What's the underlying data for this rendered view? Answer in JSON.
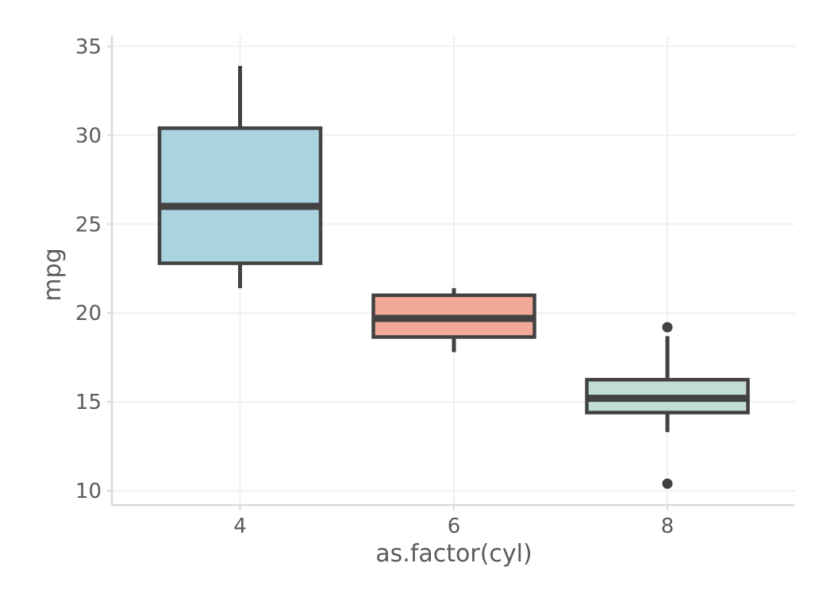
{
  "chart_data": {
    "type": "box",
    "title": "",
    "xlabel": "as.factor(cyl)",
    "ylabel": "mpg",
    "categories": [
      "4",
      "6",
      "8"
    ],
    "y_ticks": [
      10,
      15,
      20,
      25,
      30,
      35
    ],
    "ylim": [
      9.2,
      35.6
    ],
    "grid": true,
    "legend": "none",
    "boxes": [
      {
        "category": "4",
        "whisker_low": 21.4,
        "q1": 22.8,
        "median": 26.0,
        "q3": 30.4,
        "whisker_high": 33.9,
        "outliers": [],
        "fill": "#a8d3df"
      },
      {
        "category": "6",
        "whisker_low": 17.8,
        "q1": 18.65,
        "median": 19.7,
        "q3": 21.0,
        "whisker_high": 21.4,
        "outliers": [],
        "fill": "#f2a898"
      },
      {
        "category": "8",
        "whisker_low": 13.3,
        "q1": 14.4,
        "median": 15.2,
        "q3": 16.25,
        "whisker_high": 18.7,
        "outliers": [
          19.2,
          10.4
        ],
        "fill": "#c3ddd3"
      }
    ],
    "colors": {
      "box_stroke": "#424242",
      "grid": "#f0f0f0",
      "axis_line": "#d9d9d9",
      "text": "#5b5b5b"
    }
  }
}
